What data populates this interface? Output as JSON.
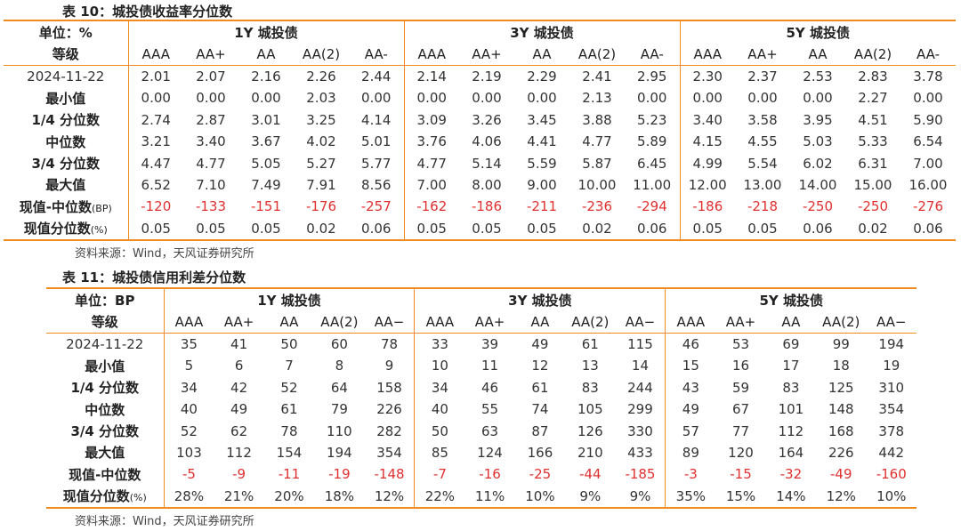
{
  "table10": {
    "caption": "表 10：城投债收益率分位数",
    "unit": "单位：%",
    "grade_label": "等级",
    "groups": [
      "1Y 城投债",
      "3Y 城投债",
      "5Y 城投债"
    ],
    "grades": [
      "AAA",
      "AA+",
      "AA",
      "AA(2)",
      "AA-"
    ],
    "rows": [
      {
        "label": "2024-11-22",
        "values": [
          "2.01",
          "2.07",
          "2.16",
          "2.26",
          "2.44",
          "2.14",
          "2.19",
          "2.29",
          "2.41",
          "2.95",
          "2.30",
          "2.37",
          "2.53",
          "2.83",
          "3.78"
        ]
      },
      {
        "label": "最小值",
        "values": [
          "0.00",
          "0.00",
          "0.00",
          "2.03",
          "0.00",
          "0.00",
          "0.00",
          "0.00",
          "2.13",
          "0.00",
          "0.00",
          "0.00",
          "0.00",
          "2.27",
          "0.00"
        ]
      },
      {
        "label": "1/4 分位数",
        "values": [
          "2.74",
          "2.87",
          "3.01",
          "3.25",
          "4.14",
          "3.09",
          "3.26",
          "3.45",
          "3.88",
          "5.23",
          "3.40",
          "3.58",
          "3.95",
          "4.51",
          "5.90"
        ]
      },
      {
        "label": "中位数",
        "values": [
          "3.21",
          "3.40",
          "3.67",
          "4.02",
          "5.01",
          "3.76",
          "4.06",
          "4.41",
          "4.77",
          "5.89",
          "4.15",
          "4.55",
          "5.03",
          "5.33",
          "6.54"
        ]
      },
      {
        "label": "3/4 分位数",
        "values": [
          "4.47",
          "4.77",
          "5.05",
          "5.27",
          "5.77",
          "4.77",
          "5.14",
          "5.59",
          "5.87",
          "6.45",
          "4.99",
          "5.54",
          "6.02",
          "6.31",
          "7.00"
        ]
      },
      {
        "label": "最大值",
        "values": [
          "6.52",
          "7.10",
          "7.49",
          "7.91",
          "8.56",
          "7.00",
          "8.00",
          "9.00",
          "10.00",
          "11.00",
          "12.00",
          "13.00",
          "14.00",
          "15.00",
          "16.00"
        ]
      },
      {
        "label": "现值-中位数",
        "suffix": "(BP)",
        "values": [
          "-120",
          "-133",
          "-151",
          "-176",
          "-257",
          "-162",
          "-186",
          "-211",
          "-236",
          "-294",
          "-186",
          "-218",
          "-250",
          "-250",
          "-276"
        ]
      },
      {
        "label": "现值分位数",
        "suffix": "(%)",
        "values": [
          "0.05",
          "0.05",
          "0.05",
          "0.02",
          "0.06",
          "0.05",
          "0.05",
          "0.05",
          "0.02",
          "0.06",
          "0.05",
          "0.05",
          "0.06",
          "0.02",
          "0.06"
        ]
      }
    ],
    "source": "资料来源：Wind，天风证券研究所"
  },
  "table11": {
    "caption": "表 11：城投债信用利差分位数",
    "unit": "单位：BP",
    "grade_label": "等级",
    "groups": [
      "1Y 城投债",
      "3Y 城投债",
      "5Y 城投债"
    ],
    "grades": [
      "AAA",
      "AA+",
      "AA",
      "AA(2)",
      "AA−"
    ],
    "rows": [
      {
        "label": "2024-11-22",
        "values": [
          "35",
          "41",
          "50",
          "60",
          "78",
          "33",
          "39",
          "49",
          "61",
          "115",
          "46",
          "53",
          "69",
          "99",
          "194"
        ]
      },
      {
        "label": "最小值",
        "values": [
          "5",
          "6",
          "7",
          "8",
          "9",
          "10",
          "11",
          "12",
          "13",
          "14",
          "15",
          "16",
          "17",
          "18",
          "19"
        ]
      },
      {
        "label": "1/4 分位数",
        "values": [
          "34",
          "42",
          "52",
          "64",
          "158",
          "34",
          "46",
          "61",
          "83",
          "244",
          "43",
          "59",
          "83",
          "125",
          "310"
        ]
      },
      {
        "label": "中位数",
        "values": [
          "40",
          "49",
          "61",
          "79",
          "226",
          "40",
          "55",
          "74",
          "105",
          "299",
          "49",
          "67",
          "101",
          "148",
          "354"
        ]
      },
      {
        "label": "3/4 分位数",
        "values": [
          "52",
          "62",
          "78",
          "110",
          "282",
          "50",
          "63",
          "87",
          "126",
          "330",
          "57",
          "77",
          "112",
          "168",
          "378"
        ]
      },
      {
        "label": "最大值",
        "values": [
          "103",
          "112",
          "154",
          "194",
          "354",
          "85",
          "124",
          "166",
          "210",
          "433",
          "89",
          "120",
          "164",
          "226",
          "442"
        ]
      },
      {
        "label": "现值-中位数",
        "suffix": "",
        "values": [
          "-5",
          "-9",
          "-11",
          "-19",
          "-148",
          "-7",
          "-16",
          "-25",
          "-44",
          "-185",
          "-3",
          "-15",
          "-32",
          "-49",
          "-160"
        ]
      },
      {
        "label": "现值分位数",
        "suffix": "(%)",
        "values": [
          "28%",
          "21%",
          "20%",
          "18%",
          "12%",
          "22%",
          "11%",
          "10%",
          "9%",
          "9%",
          "35%",
          "15%",
          "14%",
          "12%",
          "10%"
        ]
      }
    ],
    "source": "资料来源：Wind，天风证券研究所"
  }
}
